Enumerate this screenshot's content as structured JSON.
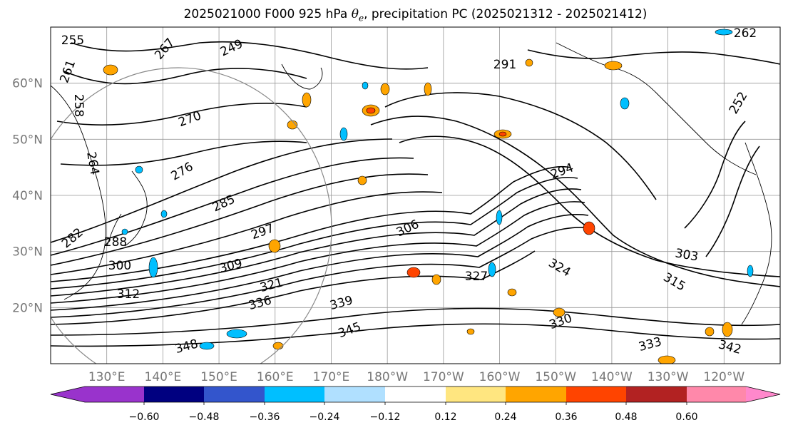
{
  "title": {
    "prefix": "2025021000 F000 925 hPa ",
    "symbol": "θ",
    "symbol_sub": "e",
    "suffix": ", precipitation PC (2025021312 - 2025021412)"
  },
  "map": {
    "lat_labels": [
      "60°N",
      "50°N",
      "40°N",
      "30°N",
      "20°N"
    ],
    "lon_labels": [
      "130°E",
      "140°E",
      "150°E",
      "160°E",
      "170°E",
      "180°W",
      "170°W",
      "160°W",
      "150°W",
      "140°W",
      "130°W",
      "120°W"
    ],
    "grid_lats": [
      60,
      50,
      40,
      30,
      20
    ],
    "grid_lons": [
      130,
      140,
      150,
      160,
      170,
      180,
      190,
      200,
      210,
      220,
      230,
      240
    ],
    "lon_range": [
      120,
      250
    ],
    "lat_range": [
      10,
      70
    ],
    "contour_labels": [
      "255",
      "249",
      "258",
      "261",
      "267",
      "270",
      "264",
      "276",
      "285",
      "282",
      "288",
      "291",
      "294",
      "297",
      "300",
      "303",
      "306",
      "309",
      "312",
      "315",
      "321",
      "324",
      "327",
      "330",
      "333",
      "336",
      "339",
      "342",
      "345",
      "348",
      "252",
      "262"
    ]
  },
  "colorbar": {
    "ticks": [
      "−0.60",
      "−0.48",
      "−0.36",
      "−0.24",
      "−0.12",
      "0.12",
      "0.24",
      "0.36",
      "0.48",
      "0.60"
    ],
    "colors": [
      "#9933cc",
      "#000080",
      "#3355cc",
      "#00bfff",
      "#b0e0ff",
      "#ffffff",
      "#ffe680",
      "#ffa500",
      "#ff4400",
      "#b22222",
      "#ff88aa",
      "#ff88cc"
    ]
  }
}
